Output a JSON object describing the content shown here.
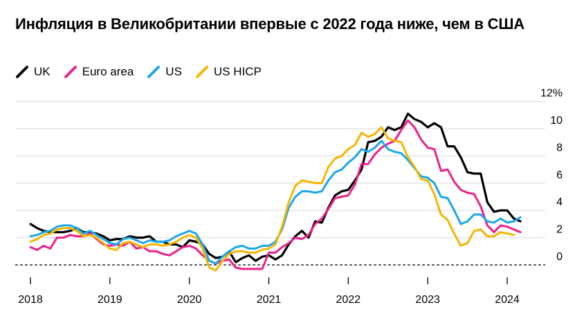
{
  "chart_data": {
    "type": "line",
    "title": "Инфляция в Великобритании впервые с 2022 года ниже, чем в США",
    "xlabel": "",
    "ylabel": "",
    "y_unit": "%",
    "ylim": [
      -1,
      12
    ],
    "yticks": [
      0,
      2,
      4,
      6,
      8,
      10,
      12
    ],
    "ytick_labels": [
      "0",
      "2",
      "4",
      "6",
      "8",
      "10",
      "12%"
    ],
    "xlim": [
      2018.0,
      2024.3
    ],
    "xticks": [
      2018,
      2019,
      2020,
      2021,
      2022,
      2023,
      2024
    ],
    "xtick_labels": [
      "2018",
      "2019",
      "2020",
      "2021",
      "2022",
      "2023",
      "2024"
    ],
    "grid": true,
    "legend_position": "top-left",
    "series": [
      {
        "name": "UK",
        "color": "#000000",
        "start": 2018.0,
        "step_months": 1,
        "values": [
          3.0,
          2.7,
          2.5,
          2.4,
          2.4,
          2.4,
          2.5,
          2.7,
          2.4,
          2.4,
          2.3,
          2.1,
          1.8,
          1.9,
          1.9,
          2.1,
          2.0,
          2.0,
          2.1,
          1.7,
          1.7,
          1.5,
          1.5,
          1.3,
          1.8,
          1.7,
          1.5,
          0.8,
          0.5,
          0.6,
          1.0,
          0.2,
          0.5,
          0.7,
          0.3,
          0.6,
          0.7,
          0.4,
          0.7,
          1.5,
          2.1,
          2.5,
          2.0,
          3.2,
          3.1,
          4.2,
          5.1,
          5.4,
          5.5,
          6.2,
          7.0,
          9.0,
          9.1,
          9.4,
          10.1,
          9.9,
          10.1,
          11.1,
          10.7,
          10.5,
          10.1,
          10.4,
          10.1,
          8.7,
          8.7,
          7.9,
          6.8,
          6.7,
          6.7,
          4.6,
          3.9,
          4.0,
          4.0,
          3.4,
          3.2
        ]
      },
      {
        "name": "Euro area",
        "color": "#ee1f8a",
        "start": 2018.0,
        "step_months": 1,
        "values": [
          1.3,
          1.1,
          1.4,
          1.2,
          2.0,
          2.0,
          2.2,
          2.1,
          2.1,
          2.3,
          1.9,
          1.5,
          1.4,
          1.5,
          1.4,
          1.7,
          1.2,
          1.3,
          1.0,
          1.0,
          0.8,
          0.7,
          1.0,
          1.3,
          1.4,
          1.2,
          0.7,
          0.3,
          0.1,
          0.3,
          0.4,
          -0.2,
          -0.3,
          -0.3,
          -0.3,
          -0.3,
          0.9,
          0.9,
          1.3,
          1.6,
          2.0,
          1.9,
          2.2,
          3.0,
          3.4,
          4.1,
          4.9,
          5.0,
          5.1,
          5.9,
          7.4,
          7.4,
          8.1,
          8.6,
          8.9,
          9.1,
          9.9,
          10.6,
          10.1,
          9.2,
          8.6,
          8.5,
          6.9,
          7.0,
          6.1,
          5.5,
          5.3,
          5.2,
          4.3,
          2.9,
          2.4,
          2.9,
          2.8,
          2.6,
          2.4
        ]
      },
      {
        "name": "US",
        "color": "#1aa7ec",
        "start": 2018.0,
        "step_months": 1,
        "values": [
          2.1,
          2.2,
          2.4,
          2.5,
          2.8,
          2.9,
          2.9,
          2.7,
          2.3,
          2.5,
          2.2,
          1.9,
          1.6,
          1.5,
          1.9,
          2.0,
          1.8,
          1.6,
          1.8,
          1.7,
          1.7,
          1.8,
          2.1,
          2.3,
          2.5,
          2.3,
          1.5,
          0.3,
          0.1,
          0.6,
          1.0,
          1.3,
          1.4,
          1.2,
          1.2,
          1.4,
          1.4,
          1.7,
          2.6,
          4.2,
          5.0,
          5.4,
          5.4,
          5.3,
          5.4,
          6.2,
          6.8,
          7.0,
          7.5,
          7.9,
          8.5,
          8.3,
          8.6,
          9.1,
          8.5,
          8.3,
          8.2,
          7.7,
          7.1,
          6.5,
          6.4,
          6.0,
          5.0,
          4.9,
          4.0,
          3.0,
          3.2,
          3.7,
          3.7,
          3.2,
          3.1,
          3.4,
          3.1,
          3.2,
          3.5
        ]
      },
      {
        "name": "US HICP",
        "color": "#f7b500",
        "start": 2018.0,
        "step_months": 1,
        "values": [
          1.7,
          1.9,
          2.2,
          2.3,
          2.6,
          2.7,
          2.7,
          2.5,
          2.1,
          2.2,
          2.0,
          1.6,
          1.2,
          1.1,
          1.6,
          1.7,
          1.5,
          1.3,
          1.5,
          1.5,
          1.4,
          1.5,
          1.7,
          2.0,
          2.2,
          2.0,
          1.2,
          -0.2,
          -0.4,
          0.3,
          0.8,
          1.0,
          1.0,
          0.9,
          0.9,
          1.1,
          1.2,
          1.5,
          2.8,
          4.6,
          5.8,
          6.2,
          6.1,
          6.0,
          6.0,
          7.2,
          7.8,
          8.0,
          8.5,
          8.8,
          9.7,
          9.4,
          9.6,
          10.1,
          9.3,
          9.1,
          9.0,
          7.9,
          7.2,
          6.3,
          6.2,
          5.2,
          3.7,
          3.3,
          2.3,
          1.4,
          1.6,
          2.5,
          2.6,
          2.1,
          2.1,
          2.4,
          2.3,
          2.2
        ]
      }
    ]
  }
}
